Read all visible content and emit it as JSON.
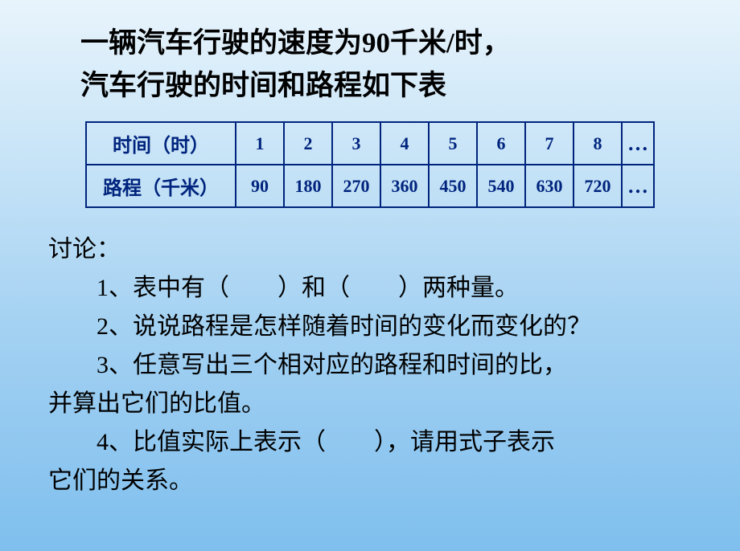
{
  "title_line1": "一辆汽车行驶的速度为90千米/时，",
  "title_line2": "汽车行驶的时间和路程如下表",
  "table": {
    "row1_label": "时间（时）",
    "row2_label": "路程（千米）",
    "time": [
      "1",
      "2",
      "3",
      "4",
      "5",
      "6",
      "7",
      "8"
    ],
    "dist": [
      "90",
      "180",
      "270",
      "360",
      "450",
      "540",
      "630",
      "720"
    ],
    "ellipsis": "…",
    "border_color": "#00247d",
    "text_color": "#00247d",
    "header_fontsize": 24,
    "cell_fontsize": 22
  },
  "discuss_label": "讨论：",
  "q1": "1、表中有（　　）和（　　）两种量。",
  "q2": "2、说说路程是怎样随着时间的变化而变化的？",
  "q3a": "3、任意写出三个相对应的路程和时间的比，",
  "q3b": "并算出它们的比值。",
  "q4a": "4、比值实际上表示（　　），请用式子表示",
  "q4b": "它们的关系。",
  "colors": {
    "text": "#000000",
    "table_blue": "#00247d",
    "bg_top": "#e8f4fc",
    "bg_bottom": "#7fbfee"
  },
  "typography": {
    "title_fontsize": 35,
    "body_fontsize": 30,
    "font_family": "SimSun"
  }
}
